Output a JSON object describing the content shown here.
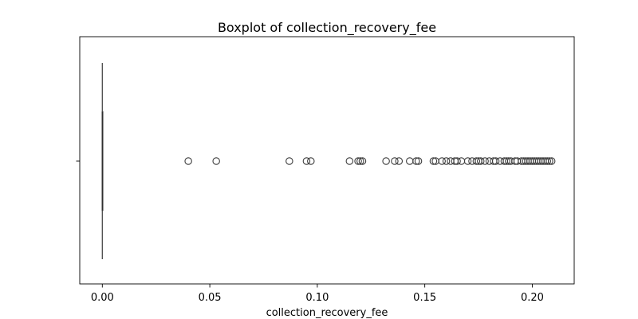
{
  "chart_data": {
    "type": "boxplot",
    "title": "Boxplot of collection_recovery_fee",
    "xlabel": "collection_recovery_fee",
    "ylabel": "",
    "orientation": "horizontal",
    "xlim": [
      -0.0105,
      0.2195
    ],
    "x_ticks": [
      0.0,
      0.05,
      0.1,
      0.15,
      0.2
    ],
    "x_tick_labels": [
      "0.00",
      "0.05",
      "0.10",
      "0.15",
      "0.20"
    ],
    "grid": false,
    "legend": "none",
    "box": {
      "min": 0.0,
      "q1": 0.0,
      "median": 0.0,
      "q3": 0.0,
      "max": 0.0
    },
    "outliers": [
      0.04,
      0.053,
      0.087,
      0.095,
      0.097,
      0.115,
      0.119,
      0.12,
      0.121,
      0.132,
      0.136,
      0.138,
      0.143,
      0.146,
      0.147,
      0.154,
      0.155,
      0.158,
      0.16,
      0.162,
      0.164,
      0.165,
      0.167,
      0.17,
      0.172,
      0.174,
      0.175,
      0.176,
      0.178,
      0.18,
      0.182,
      0.183,
      0.185,
      0.187,
      0.188,
      0.189,
      0.19,
      0.192,
      0.193,
      0.195,
      0.196,
      0.197,
      0.198,
      0.199,
      0.2,
      0.201,
      0.202,
      0.203,
      0.204,
      0.205,
      0.206,
      0.207,
      0.208,
      0.209
    ],
    "colors": {
      "box": "#4a4a4a",
      "outlier_edge": "#3d3d3d",
      "axes": "#000000"
    }
  }
}
